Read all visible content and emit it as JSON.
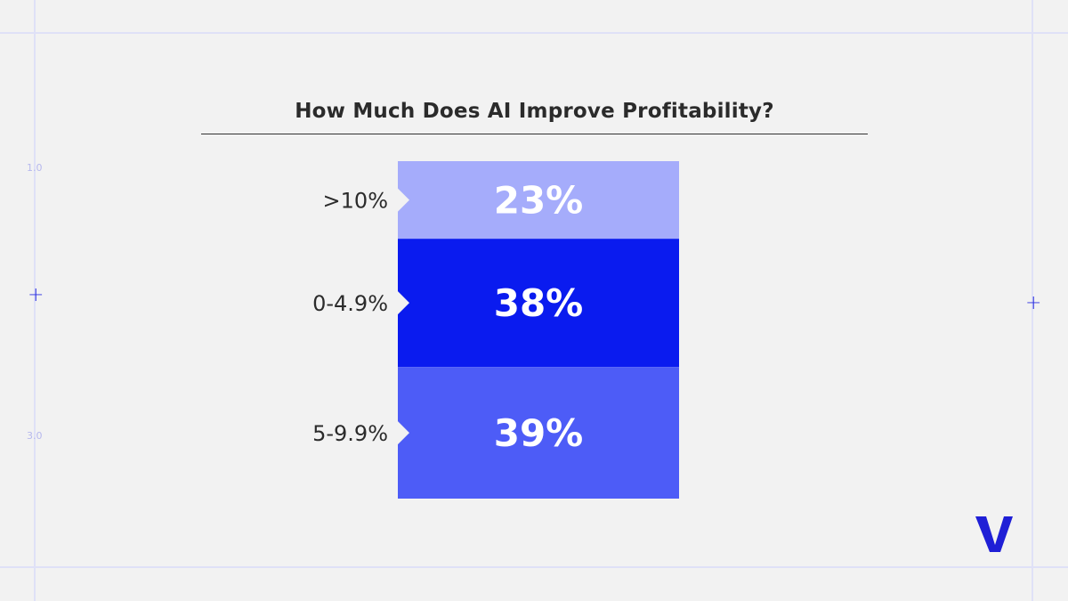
{
  "title": "How Much Does AI Improve Profitability?",
  "guides": {
    "tick_top": "1.0",
    "tick_bottom": "3.0"
  },
  "logo": {
    "icon": "v-logo-icon",
    "color": "#1f1fd6"
  },
  "colors": {
    "title": "#2b2b2b",
    "label": "#2b2b2b",
    "value_text": "#ffffff",
    "background": "#f2f2f2"
  },
  "chart_data": {
    "type": "bar",
    "orientation": "stacked-100",
    "title": "How Much Does AI Improve Profitability?",
    "categories": [
      ">10%",
      "0-4.9%",
      "5-9.9%"
    ],
    "values": [
      23,
      38,
      39
    ],
    "value_labels": [
      "23%",
      "38%",
      "39%"
    ],
    "colors": [
      "#a5acfb",
      "#0a1bef",
      "#4d5cf7"
    ],
    "unit": "%"
  }
}
